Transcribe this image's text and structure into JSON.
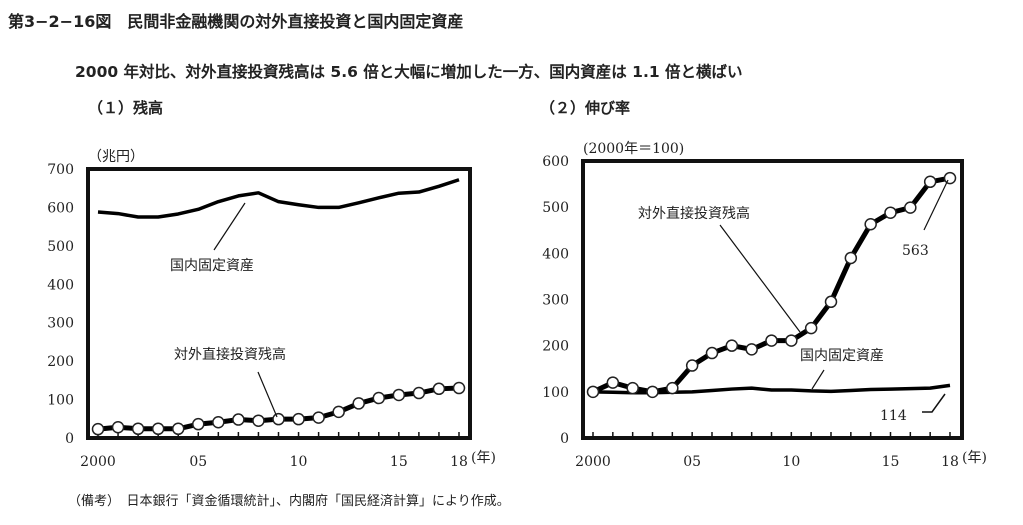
{
  "title": "第3−2−16図　民間非金融機関の対外直接投資と国内固定資産",
  "subtitle": "2000 年対比、対外直接投資残高は 5.6 倍と大幅に増加した一方、国内資産は 1.1 倍と横ばい",
  "note": "（備考）　日本銀行「資金循環統計」、内閣府「国民経済計算」により作成。",
  "chart_data": [
    {
      "type": "line",
      "panel_title": "（１）残高",
      "ylabel": "（兆円）",
      "xlabel": "(年)",
      "ylim": [
        0,
        700
      ],
      "yticks": [
        "0",
        "100",
        "200",
        "300",
        "400",
        "500",
        "600",
        "700"
      ],
      "xticks": [
        "2000",
        "05",
        "10",
        "15",
        "18"
      ],
      "x": [
        2000,
        2001,
        2002,
        2003,
        2004,
        2005,
        2006,
        2007,
        2008,
        2009,
        2010,
        2011,
        2012,
        2013,
        2014,
        2015,
        2016,
        2017,
        2018
      ],
      "series": [
        {
          "name": "国内固定資産",
          "markers": false,
          "values": [
            588,
            584,
            575,
            575,
            583,
            595,
            615,
            630,
            638,
            615,
            607,
            600,
            600,
            612,
            625,
            637,
            640,
            655,
            672
          ]
        },
        {
          "name": "対外直接投資残高",
          "markers": true,
          "values": [
            23,
            28,
            24,
            24,
            24,
            36,
            41,
            48,
            45,
            49,
            49,
            53,
            68,
            90,
            104,
            112,
            117,
            128,
            130
          ]
        }
      ]
    },
    {
      "type": "line",
      "panel_title": "（２）伸び率",
      "ylabel": "(2000年＝100)",
      "xlabel": "(年)",
      "ylim": [
        0,
        600
      ],
      "yticks": [
        "0",
        "100",
        "200",
        "300",
        "400",
        "500",
        "600"
      ],
      "xticks": [
        "2000",
        "05",
        "10",
        "15",
        "18"
      ],
      "x": [
        2000,
        2001,
        2002,
        2003,
        2004,
        2005,
        2006,
        2007,
        2008,
        2009,
        2010,
        2011,
        2012,
        2013,
        2014,
        2015,
        2016,
        2017,
        2018
      ],
      "series": [
        {
          "name": "国内固定資産",
          "markers": false,
          "values": [
            100,
            99,
            98,
            98,
            99,
            100,
            103,
            106,
            108,
            104,
            104,
            102,
            101,
            103,
            105,
            106,
            107,
            108,
            114
          ]
        },
        {
          "name": "対外直接投資残高",
          "markers": true,
          "values": [
            100,
            120,
            108,
            100,
            108,
            157,
            184,
            200,
            192,
            211,
            211,
            238,
            295,
            390,
            463,
            488,
            499,
            555,
            563
          ]
        }
      ],
      "annotations": [
        "563",
        "114"
      ]
    }
  ]
}
